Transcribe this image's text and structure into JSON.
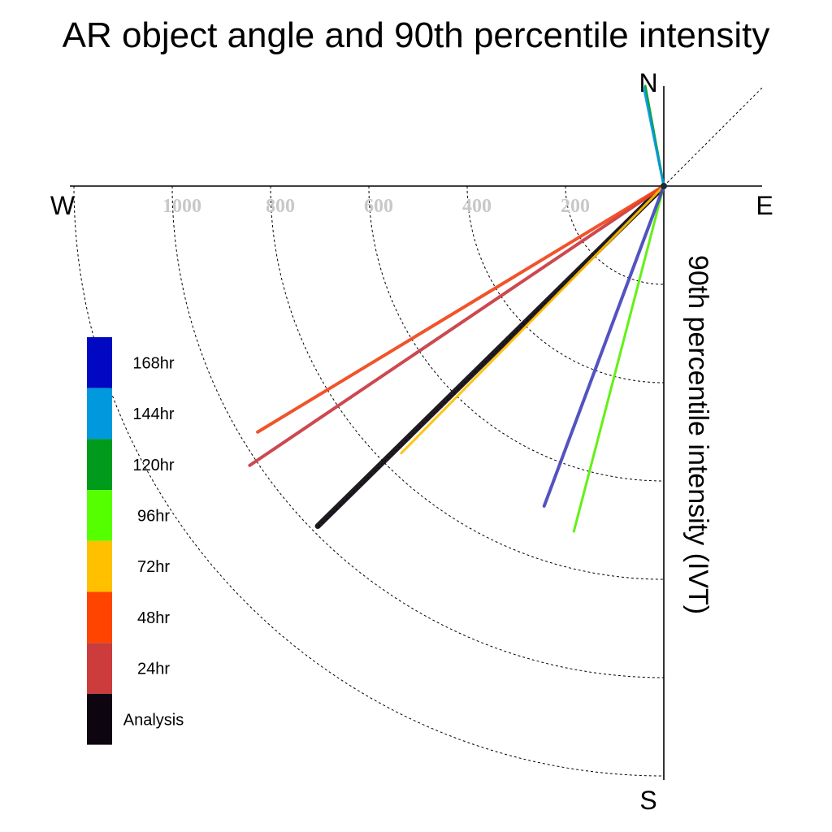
{
  "chart_data": {
    "type": "polar-line",
    "title": "AR object angle and 90th percentile intensity",
    "radial_label": "90th percentile intensity (IVT)",
    "directions": {
      "north": "N",
      "south": "S",
      "east": "E",
      "west": "W"
    },
    "radial_ticks": [
      200,
      400,
      600,
      800,
      1000
    ],
    "radial_ticks_shown_on_axis": [
      "200",
      "400",
      "600",
      "800",
      "1000"
    ],
    "radial_max": 1200,
    "grid": true,
    "legend_position": "left",
    "series": [
      {
        "name": "Analysis",
        "color": "#0d0610",
        "angle_deg_from_north": 225.5,
        "intensity": 987,
        "width": 7
      },
      {
        "name": "24hr",
        "color": "#c83a40",
        "angle_deg_from_north": 236.0,
        "intensity": 1016,
        "width": 4
      },
      {
        "name": "48hr",
        "color": "#f04418",
        "angle_deg_from_north": 238.8,
        "intensity": 966,
        "width": 4
      },
      {
        "name": "72hr",
        "color": "#ffc000",
        "angle_deg_from_north": 224.5,
        "intensity": 762,
        "width": 3
      },
      {
        "name": "96hr",
        "color": "#56f000",
        "angle_deg_from_north": 194.6,
        "intensity": 726,
        "width": 3
      },
      {
        "name": "120hr",
        "color": "#009a1c",
        "angle_deg_from_north": 349.5,
        "intensity": 207,
        "width": 3
      },
      {
        "name": "144hr",
        "color": "#0099dd",
        "angle_deg_from_north": 348.5,
        "intensity": 203,
        "width": 3
      },
      {
        "name": "168hr",
        "color": "#4444bb",
        "angle_deg_from_north": 200.5,
        "intensity": 695,
        "width": 4
      }
    ],
    "legend": [
      {
        "label": "168hr",
        "color": "#0008c2"
      },
      {
        "label": "144hr",
        "color": "#0099dd"
      },
      {
        "label": "120hr",
        "color": "#009a1c"
      },
      {
        "label": "96hr",
        "color": "#56ff00"
      },
      {
        "label": "72hr",
        "color": "#ffc000"
      },
      {
        "label": "48hr",
        "color": "#ff4400"
      },
      {
        "label": "24hr",
        "color": "#cc3c3c"
      },
      {
        "label": "Analysis",
        "color": "#0d0610"
      }
    ]
  }
}
